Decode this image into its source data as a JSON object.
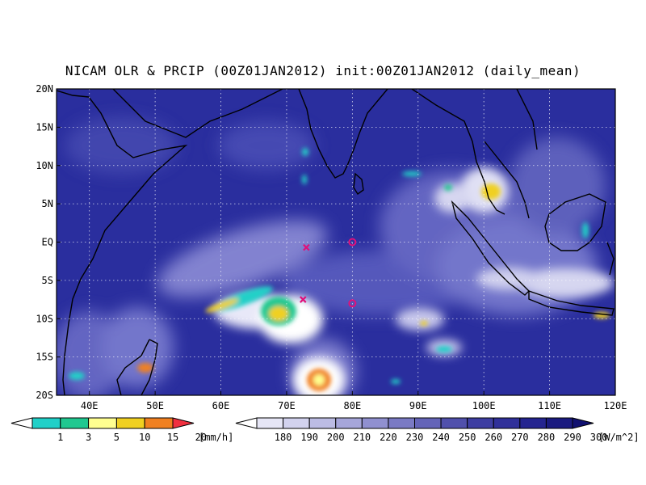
{
  "title": "NICAM OLR & PRCIP (00Z01JAN2012) init:00Z01JAN2012 (daily_mean)",
  "map": {
    "lat_labels": [
      "20N",
      "15N",
      "10N",
      "5N",
      "EQ",
      "5S",
      "10S",
      "15S",
      "20S"
    ],
    "lon_labels": [
      "40E",
      "50E",
      "60E",
      "70E",
      "80E",
      "90E",
      "100E",
      "110E",
      "120E"
    ],
    "lat_range": [
      -20,
      20
    ],
    "lon_range": [
      35,
      120
    ],
    "grid": "dotted",
    "background_color": "#2a2e9e",
    "coastline_color": "#000000"
  },
  "markers": [
    {
      "type": "x",
      "lon": 73,
      "lat": -0.7,
      "color": "#e0107a"
    },
    {
      "type": "x",
      "lon": 72.5,
      "lat": -7.5,
      "color": "#e0107a"
    },
    {
      "type": "o",
      "lon": 80,
      "lat": 0,
      "color": "#e0107a"
    },
    {
      "type": "o",
      "lon": 80,
      "lat": -8,
      "color": "#e0107a"
    }
  ],
  "precip_legend": {
    "ticks": [
      "1",
      "3",
      "5",
      "10",
      "15",
      "20"
    ],
    "unit": "[mm/h]",
    "colors": [
      "#ffffff",
      "#20d0c8",
      "#20c890",
      "#ffff90",
      "#f0d020",
      "#f08020",
      "#f03040"
    ]
  },
  "olr_legend": {
    "ticks": [
      "180",
      "190",
      "200",
      "210",
      "220",
      "230",
      "240",
      "250",
      "260",
      "270",
      "280",
      "290",
      "300"
    ],
    "unit": "[W/m^2]",
    "colors": [
      "#ffffff",
      "#e6e6f6",
      "#d2d2ee",
      "#bcbce4",
      "#a6a6da",
      "#9090d0",
      "#7a7ac4",
      "#6464b8",
      "#5050ac",
      "#3e3ea2",
      "#30309a",
      "#242490",
      "#1a1a80",
      "#101070"
    ]
  }
}
